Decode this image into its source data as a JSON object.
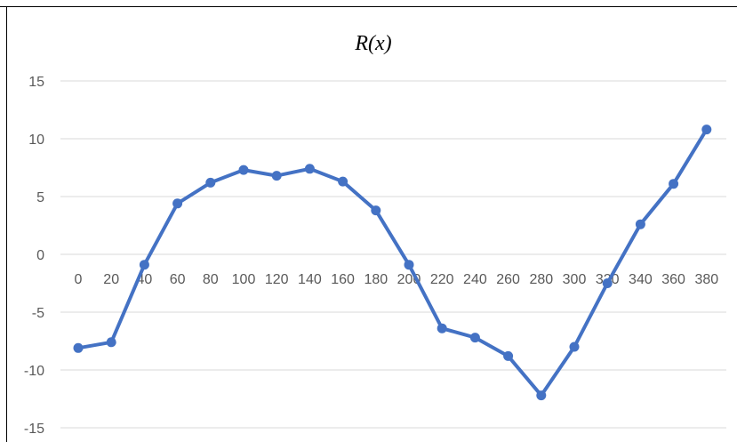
{
  "chart_data": {
    "type": "line",
    "title": "R(x)",
    "xlabel": "",
    "ylabel": "",
    "x": [
      0,
      20,
      40,
      60,
      80,
      100,
      120,
      140,
      160,
      180,
      200,
      220,
      240,
      260,
      280,
      300,
      320,
      340,
      360,
      380
    ],
    "series": [
      {
        "values": [
          -8.1,
          -7.6,
          -0.9,
          4.4,
          6.2,
          7.3,
          6.8,
          7.4,
          6.3,
          3.8,
          -0.9,
          -6.4,
          -7.2,
          -8.8,
          -12.2,
          -8.0,
          -2.5,
          2.6,
          6.1,
          10.8
        ],
        "color": "#4472C4"
      }
    ],
    "ylim": [
      -15,
      15
    ],
    "yticks": [
      15,
      10,
      5,
      0,
      -5,
      -10,
      -15
    ],
    "grid": true,
    "legend": "none"
  }
}
